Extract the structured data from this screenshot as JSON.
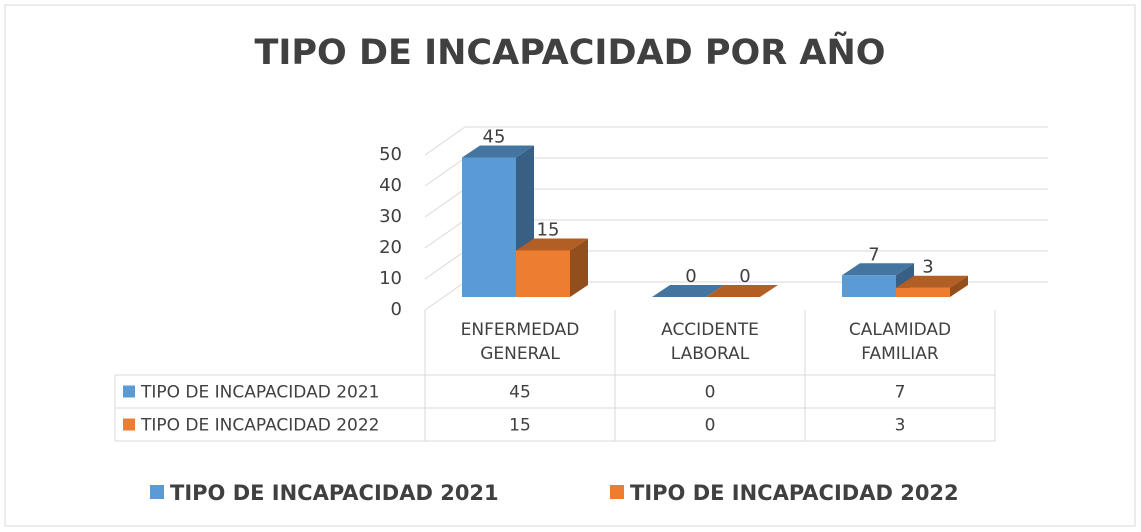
{
  "chart_data": {
    "type": "bar3d",
    "title": "TIPO DE INCAPACIDAD POR AÑO",
    "categories": [
      "ENFERMEDAD GENERAL",
      "ACCIDENTE LABORAL",
      "CALAMIDAD FAMILIAR"
    ],
    "series": [
      {
        "name": "TIPO DE INCAPACIDAD 2021",
        "color": "#5b9bd5",
        "values": [
          45,
          0,
          7
        ]
      },
      {
        "name": "TIPO DE INCAPACIDAD 2022",
        "color": "#ed7d31",
        "values": [
          15,
          0,
          3
        ]
      }
    ],
    "ylim": [
      0,
      50
    ],
    "yticks": [
      0,
      10,
      20,
      30,
      40,
      50
    ],
    "grid": true,
    "data_table": true,
    "legend": "bottom"
  }
}
